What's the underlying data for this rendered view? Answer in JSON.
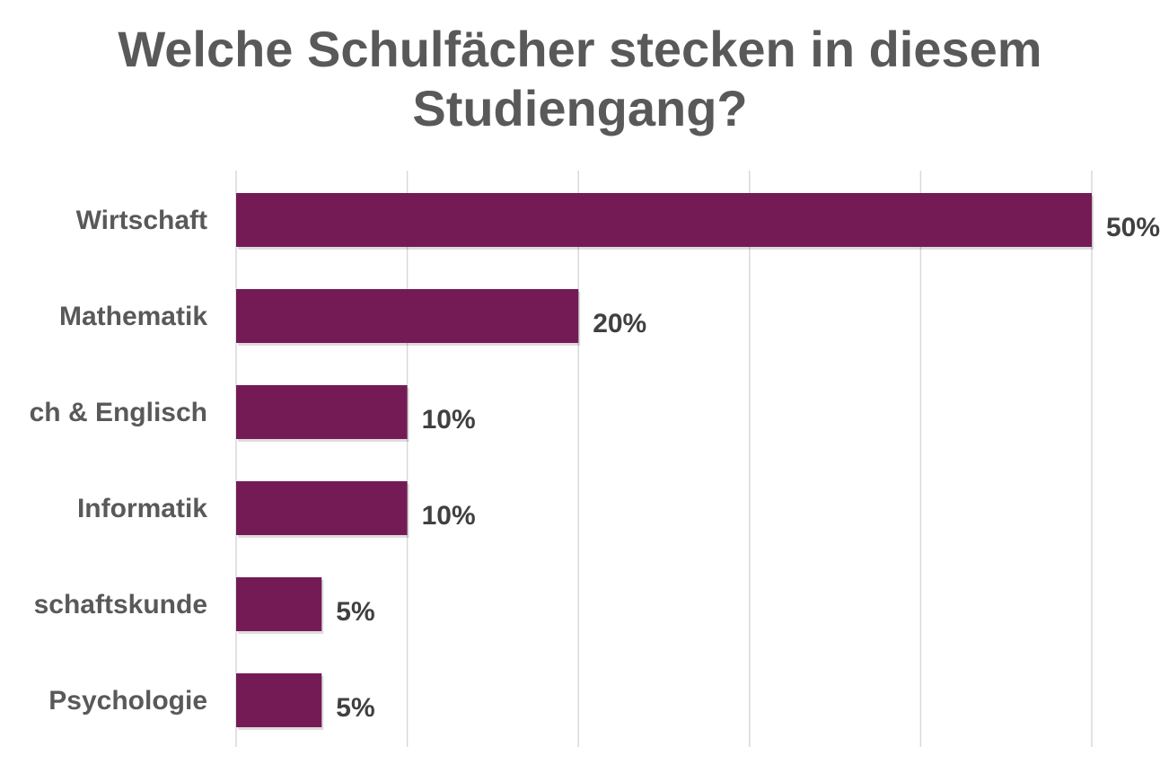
{
  "chart_data": {
    "type": "bar",
    "orientation": "horizontal",
    "title_line1": "Welche Schulfächer stecken in diesem",
    "title_line2": "Studiengang?",
    "categories": [
      "Wirtschaft",
      "Mathematik",
      "ch & Englisch",
      "Informatik",
      "schaftskunde",
      "Psychologie"
    ],
    "values": [
      50,
      20,
      10,
      10,
      5,
      5
    ],
    "data_labels": [
      "50%",
      "20%",
      "10%",
      "10%",
      "5%",
      "5%"
    ],
    "xlim": [
      0,
      50
    ],
    "grid_step": 10,
    "grid": true,
    "bar_color": "#741B55",
    "xlabel": "",
    "ylabel": ""
  }
}
